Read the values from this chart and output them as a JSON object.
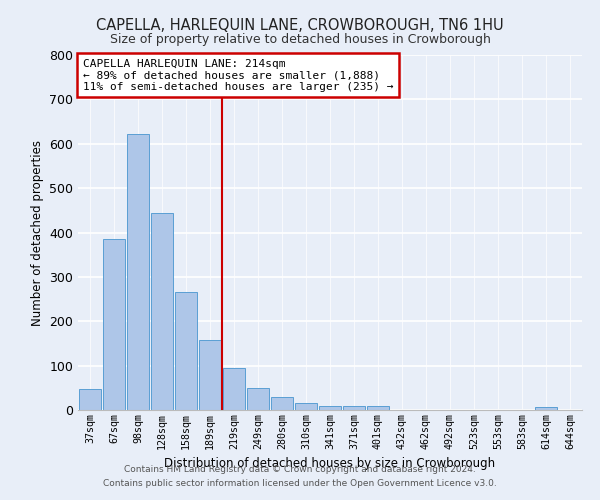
{
  "title": "CAPELLA, HARLEQUIN LANE, CROWBOROUGH, TN6 1HU",
  "subtitle": "Size of property relative to detached houses in Crowborough",
  "xlabel": "Distribution of detached houses by size in Crowborough",
  "ylabel": "Number of detached properties",
  "bar_labels": [
    "37sqm",
    "67sqm",
    "98sqm",
    "128sqm",
    "158sqm",
    "189sqm",
    "219sqm",
    "249sqm",
    "280sqm",
    "310sqm",
    "341sqm",
    "371sqm",
    "401sqm",
    "432sqm",
    "462sqm",
    "492sqm",
    "523sqm",
    "553sqm",
    "583sqm",
    "614sqm",
    "644sqm"
  ],
  "bar_values": [
    47,
    385,
    622,
    443,
    265,
    157,
    95,
    50,
    30,
    15,
    10,
    10,
    10,
    0,
    0,
    0,
    0,
    0,
    0,
    7,
    0
  ],
  "bar_color": "#aec6e8",
  "bar_edge_color": "#5a9fd4",
  "vline_index": 6,
  "vline_color": "#cc0000",
  "annotation_text": "CAPELLA HARLEQUIN LANE: 214sqm\n← 89% of detached houses are smaller (1,888)\n11% of semi-detached houses are larger (235) →",
  "annotation_box_color": "#ffffff",
  "annotation_box_edge_color": "#cc0000",
  "ylim": [
    0,
    800
  ],
  "yticks": [
    0,
    100,
    200,
    300,
    400,
    500,
    600,
    700,
    800
  ],
  "footer": "Contains HM Land Registry data © Crown copyright and database right 2024.\nContains public sector information licensed under the Open Government Licence v3.0.",
  "bg_color": "#e8eef8",
  "plot_bg_color": "#e8eef8"
}
